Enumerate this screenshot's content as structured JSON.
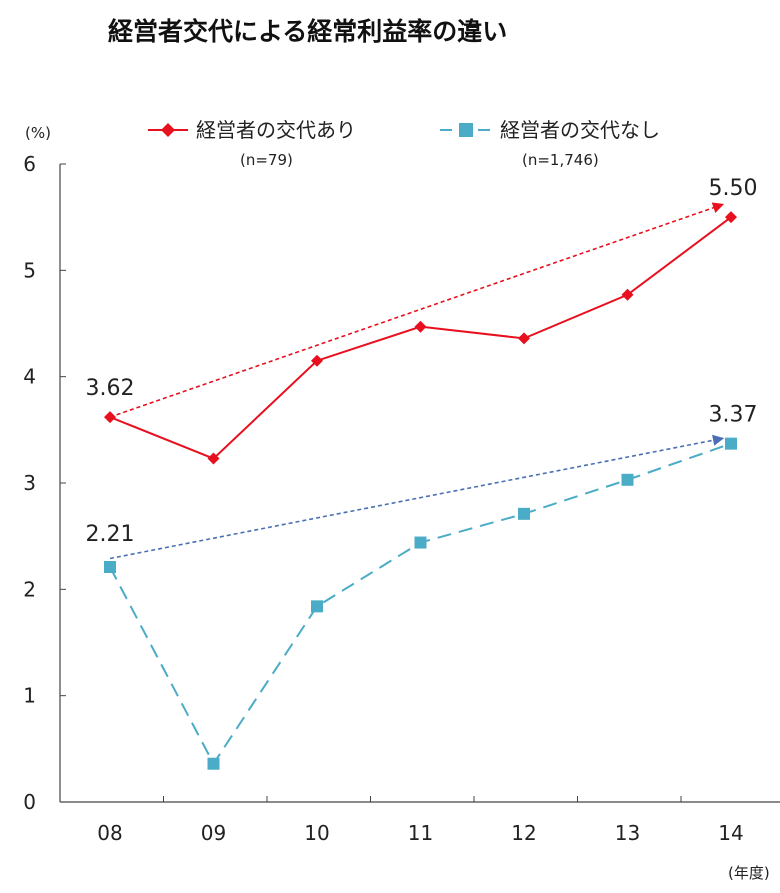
{
  "chart_data": {
    "type": "line",
    "title": "経営者交代による経常利益率の違い",
    "y_unit": "(%)",
    "x_unit": "(年度)",
    "categories": [
      "08",
      "09",
      "10",
      "11",
      "12",
      "13",
      "14"
    ],
    "ylim": [
      0,
      6
    ],
    "yticks": [
      "0",
      "1",
      "2",
      "3",
      "4",
      "5",
      "6"
    ],
    "grid": false,
    "legend_position": "top",
    "series": [
      {
        "name": "経営者の交代あり",
        "n_label": "(n=79)",
        "values": [
          3.62,
          3.23,
          4.15,
          4.47,
          4.36,
          4.77,
          5.5
        ],
        "color": "#e8101e",
        "marker": "diamond",
        "line_style": "solid",
        "start_label": "3.62",
        "end_label": "5.50"
      },
      {
        "name": "経営者の交代なし",
        "n_label": "(n=1,746)",
        "values": [
          2.21,
          0.36,
          1.84,
          2.44,
          2.71,
          3.03,
          3.37
        ],
        "color": "#4aacc6",
        "marker": "square",
        "line_style": "dashed",
        "start_label": "2.21",
        "end_label": "3.37"
      }
    ],
    "trend_arrows": [
      {
        "series": "経営者の交代あり",
        "from": [
          "08",
          3.62
        ],
        "to": [
          "14",
          5.62
        ],
        "color": "#e8101e"
      },
      {
        "series": "経営者の交代なし",
        "from": [
          "08",
          2.29
        ],
        "to": [
          "14",
          3.42
        ],
        "color": "#4a6fb5"
      }
    ]
  }
}
